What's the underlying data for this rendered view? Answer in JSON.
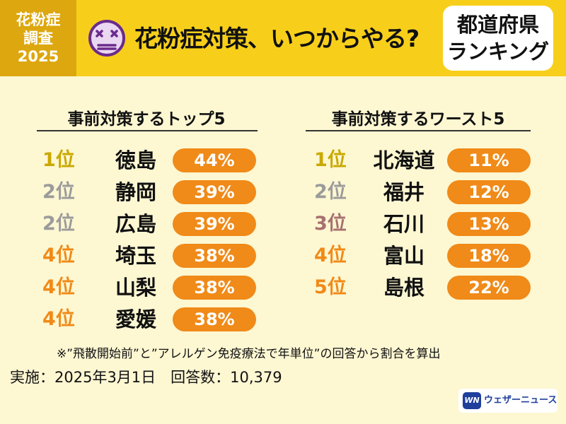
{
  "header": {
    "survey_tag": [
      "花粉症",
      "調査",
      "2025"
    ],
    "title": "花粉症対策、いつからやる?",
    "badge": [
      "都道府県",
      "ランキング"
    ]
  },
  "top5": {
    "title": "事前対策するトップ5",
    "rows": [
      {
        "rank": "1位",
        "prefecture": "徳島",
        "percent": "44%",
        "rank_color": "#c9a800"
      },
      {
        "rank": "2位",
        "prefecture": "静岡",
        "percent": "39%",
        "rank_color": "#9b9b9b"
      },
      {
        "rank": "2位",
        "prefecture": "広島",
        "percent": "39%",
        "rank_color": "#9b9b9b"
      },
      {
        "rank": "4位",
        "prefecture": "埼玉",
        "percent": "38%",
        "rank_color": "#f08a18"
      },
      {
        "rank": "4位",
        "prefecture": "山梨",
        "percent": "38%",
        "rank_color": "#f08a18"
      },
      {
        "rank": "4位",
        "prefecture": "愛媛",
        "percent": "38%",
        "rank_color": "#f08a18"
      }
    ]
  },
  "worst5": {
    "title": "事前対策するワースト5",
    "rows": [
      {
        "rank": "1位",
        "prefecture": "北海道",
        "percent": "11%",
        "rank_color": "#c9a800"
      },
      {
        "rank": "2位",
        "prefecture": "福井",
        "percent": "12%",
        "rank_color": "#9b9b9b"
      },
      {
        "rank": "3位",
        "prefecture": "石川",
        "percent": "13%",
        "rank_color": "#a87070"
      },
      {
        "rank": "4位",
        "prefecture": "富山",
        "percent": "18%",
        "rank_color": "#f08a18"
      },
      {
        "rank": "5位",
        "prefecture": "島根",
        "percent": "22%",
        "rank_color": "#f08a18"
      }
    ]
  },
  "footnote": "※”飛散開始前”と”アレルゲン免疫療法で年単位”の回答から割合を算出",
  "survey_info": "実施：2025年3月1日　回答数：10,379",
  "logo": {
    "mark": "WN",
    "text": "ウェザーニュース"
  },
  "colors": {
    "header": "#f7cf1b",
    "tag": "#dda70f",
    "pill": "#f08a18",
    "background": "#fdf7d2",
    "logo": "#1f3f9b"
  }
}
